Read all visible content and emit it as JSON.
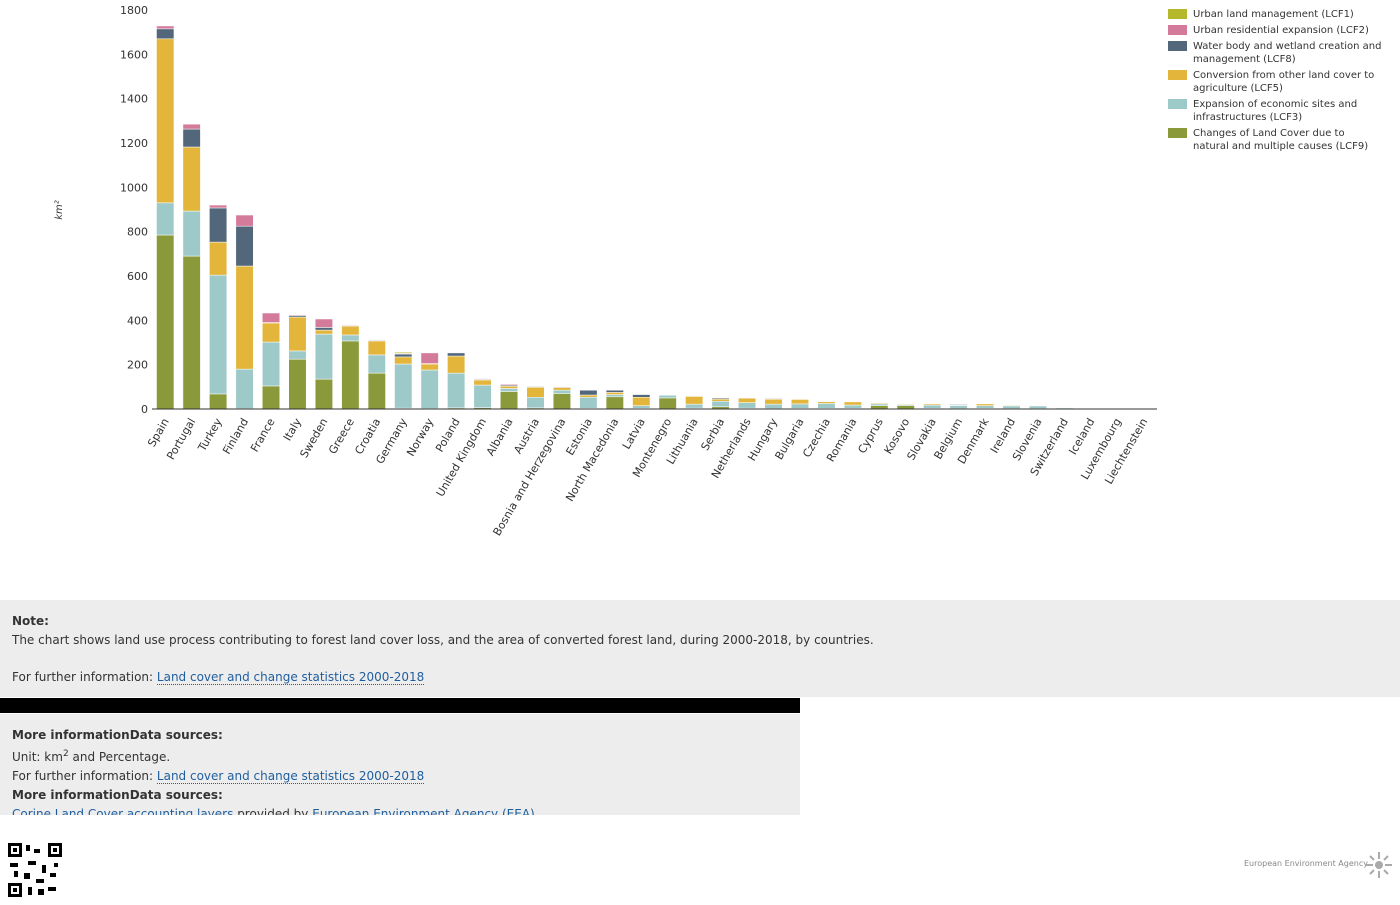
{
  "chart_data": {
    "type": "bar",
    "stacked": true,
    "y_label": "km²",
    "categories": [
      "Spain",
      "Portugal",
      "Turkey",
      "Finland",
      "France",
      "Italy",
      "Sweden",
      "Greece",
      "Croatia",
      "Germany",
      "Norway",
      "Poland",
      "United Kingdom",
      "Albania",
      "Austria",
      "Bosnia and Herzegovina",
      "Estonia",
      "North Macedonia",
      "Latvia",
      "Montenegro",
      "Lithuania",
      "Serbia",
      "Netherlands",
      "Hungary",
      "Bulgaria",
      "Czechia",
      "Romania",
      "Cyprus",
      "Kosovo",
      "Slovakia",
      "Belgium",
      "Denmark",
      "Ireland",
      "Slovenia",
      "Switzerland",
      "Iceland",
      "Luxembourg",
      "Liechtenstein"
    ],
    "series": [
      {
        "name": "Changes of Land Cover due to natural and multiple causes (LCF9)",
        "color": "#8a9a3a",
        "values": [
          785,
          690,
          68,
          2,
          104,
          225,
          135,
          307,
          162,
          4,
          2,
          5,
          6,
          79,
          5,
          70,
          3,
          55,
          3,
          50,
          4,
          10,
          4,
          2,
          3,
          3,
          3,
          15,
          15,
          3,
          2,
          3,
          2,
          2,
          1,
          0,
          0,
          0
        ]
      },
      {
        "name": "Expansion of economic sites and infrastructures (LCF3)",
        "color": "#9dc9c9",
        "values": [
          145,
          203,
          536,
          178,
          198,
          37,
          203,
          27,
          82,
          199,
          174,
          157,
          102,
          14,
          48,
          15,
          50,
          10,
          12,
          12,
          18,
          25,
          25,
          20,
          20,
          22,
          15,
          8,
          5,
          15,
          14,
          12,
          12,
          12,
          4,
          0,
          0,
          0
        ]
      },
      {
        "name": "Conversion from other land cover to agriculture (LCF5)",
        "color": "#e3b53a",
        "values": [
          740,
          289,
          149,
          465,
          86,
          153,
          18,
          40,
          63,
          32,
          27,
          77,
          23,
          10,
          45,
          12,
          10,
          10,
          38,
          2,
          35,
          10,
          20,
          22,
          20,
          8,
          14,
          4,
          3,
          5,
          2,
          8,
          3,
          2,
          2,
          0,
          0,
          0
        ]
      },
      {
        "name": "Water body and wetland creation and management (LCF8)",
        "color": "#52677a",
        "values": [
          45,
          81,
          154,
          180,
          2,
          7,
          12,
          2,
          3,
          13,
          2,
          14,
          3,
          5,
          3,
          3,
          22,
          10,
          12,
          0,
          2,
          5,
          2,
          3,
          0,
          2,
          0,
          0,
          0,
          0,
          3,
          0,
          2,
          0,
          1,
          0,
          0,
          0
        ]
      },
      {
        "name": "Urban residential expansion (LCF2)",
        "color": "#d47a9a",
        "values": [
          13,
          22,
          13,
          50,
          43,
          3,
          38,
          3,
          2,
          3,
          48,
          0,
          3,
          4,
          0,
          2,
          2,
          2,
          0,
          0,
          0,
          2,
          0,
          0,
          0,
          0,
          0,
          0,
          0,
          0,
          0,
          0,
          0,
          0,
          2,
          0,
          0,
          0
        ]
      },
      {
        "name": "Urban land management (LCF1)",
        "color": "#b5b82a",
        "values": [
          0,
          0,
          0,
          0,
          0,
          0,
          0,
          0,
          0,
          5,
          0,
          0,
          0,
          0,
          0,
          0,
          0,
          0,
          0,
          0,
          0,
          0,
          0,
          0,
          0,
          0,
          0,
          0,
          0,
          0,
          0,
          0,
          0,
          0,
          0,
          0,
          0,
          0
        ]
      }
    ],
    "ylim": [
      0,
      1800
    ],
    "yticks": [
      0,
      200,
      400,
      600,
      800,
      1000,
      1200,
      1400,
      1600,
      1800
    ],
    "grid": false
  },
  "note": {
    "heading": "Note:",
    "text": "The chart shows land use process contributing to forest land cover loss, and the area of converted forest land, during 2000-2018, by countries.",
    "further_label": "For further information:",
    "further_link": "Land cover and change statistics 2000-2018"
  },
  "more_info": {
    "heading": "More informationData sources:",
    "unit_prefix": "Unit: km",
    "unit_sup": "2",
    "unit_suffix": " and Percentage.",
    "further_label": "For further information:",
    "further_link": "Land cover and change statistics 2000-2018",
    "heading2": "More informationData sources:",
    "source_link": "Corine Land Cover accounting layers",
    "source_mid": "provided by",
    "source_org": "European Environment Agency (EEA)"
  },
  "footer": {
    "logo_text": "European Environment Agency"
  }
}
